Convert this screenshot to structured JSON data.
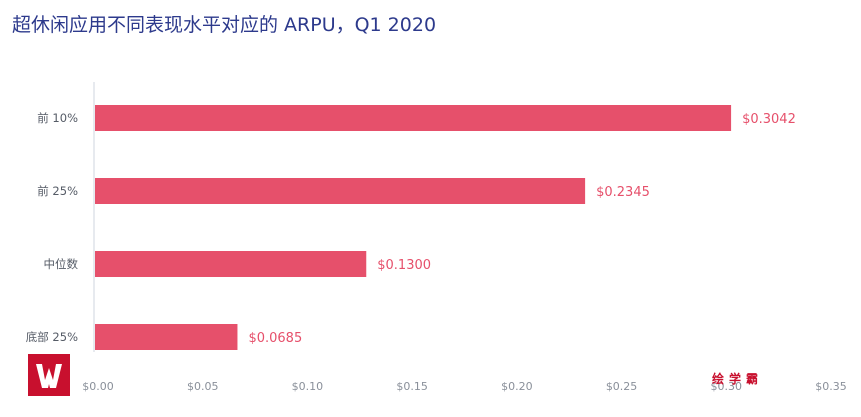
{
  "chart_data": {
    "type": "bar",
    "orientation": "horizontal",
    "title": "超休闲应用不同表现水平对应的 ARPU，Q1 2020",
    "categories": [
      "前 10%",
      "前 25%",
      "中位数",
      "底部 25%"
    ],
    "values": [
      0.3042,
      0.2345,
      0.13,
      0.0685
    ],
    "value_labels": [
      "$0.3042",
      "$0.2345",
      "$0.1300",
      "$0.0685"
    ],
    "x_ticks": [
      0.0,
      0.05,
      0.1,
      0.15,
      0.2,
      0.25,
      0.3,
      0.35
    ],
    "x_tick_labels": [
      "$0.00",
      "$0.05",
      "$0.10",
      "$0.15",
      "$0.20",
      "$0.25",
      "$0.30",
      "$0.35"
    ],
    "xlim": [
      0,
      0.35
    ],
    "grid": false,
    "bar_color": "#e6506b",
    "label_color": "#e6506b"
  },
  "watermark": "绘学霸",
  "logo_label": "logo"
}
